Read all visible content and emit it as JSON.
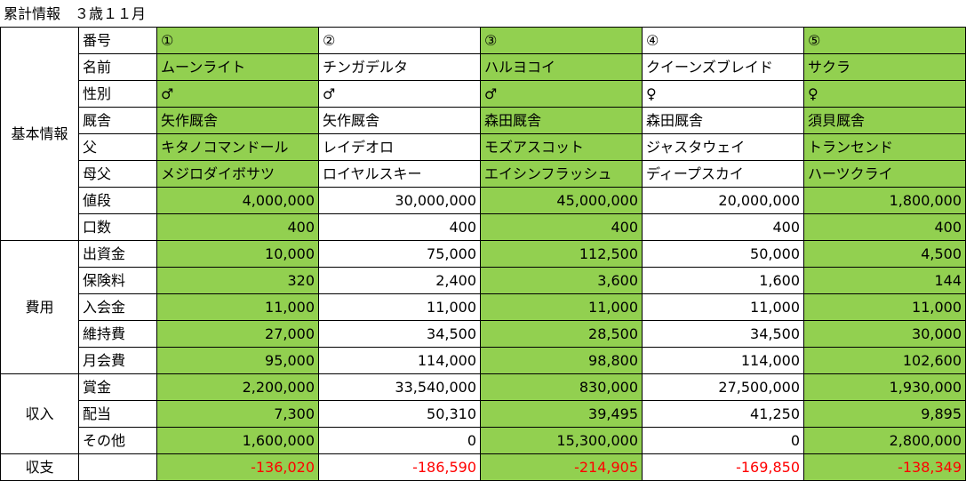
{
  "title": "累計情報　３歳１１月",
  "colors": {
    "highlight": "#92d050",
    "negative": "#ff0000"
  },
  "horses": [
    {
      "number": "①",
      "name": "ムーンライト",
      "sex": "♂",
      "stable": "矢作厩舎",
      "sire": "キタノコマンドール",
      "dam_sire": "メジロダイボサツ",
      "price": "4,000,000",
      "shares": "400",
      "investment": "10,000",
      "insurance": "320",
      "entry_fee": "11,000",
      "maintenance": "27,000",
      "monthly_fee": "95,000",
      "prize": "2,200,000",
      "dividend": "7,300",
      "other": "1,600,000",
      "balance": "-136,020"
    },
    {
      "number": "②",
      "name": "チンガデルタ",
      "sex": "♂",
      "stable": "矢作厩舎",
      "sire": "レイデオロ",
      "dam_sire": "ロイヤルスキー",
      "price": "30,000,000",
      "shares": "400",
      "investment": "75,000",
      "insurance": "2,400",
      "entry_fee": "11,000",
      "maintenance": "34,500",
      "monthly_fee": "114,000",
      "prize": "33,540,000",
      "dividend": "50,310",
      "other": "0",
      "balance": "-186,590"
    },
    {
      "number": "③",
      "name": "ハルヨコイ",
      "sex": "♂",
      "stable": "森田厩舎",
      "sire": "モズアスコット",
      "dam_sire": "エイシンフラッシュ",
      "price": "45,000,000",
      "shares": "400",
      "investment": "112,500",
      "insurance": "3,600",
      "entry_fee": "11,000",
      "maintenance": "28,500",
      "monthly_fee": "98,800",
      "prize": "830,000",
      "dividend": "39,495",
      "other": "15,300,000",
      "balance": "-214,905"
    },
    {
      "number": "④",
      "name": "クイーンズブレイド",
      "sex": "♀",
      "stable": "森田厩舎",
      "sire": "ジャスタウェイ",
      "dam_sire": "ディープスカイ",
      "price": "20,000,000",
      "shares": "400",
      "investment": "50,000",
      "insurance": "1,600",
      "entry_fee": "11,000",
      "maintenance": "34,500",
      "monthly_fee": "114,000",
      "prize": "27,500,000",
      "dividend": "41,250",
      "other": "0",
      "balance": "-169,850"
    },
    {
      "number": "⑤",
      "name": "サクラ",
      "sex": "♀",
      "stable": "須貝厩舎",
      "sire": "トランセンド",
      "dam_sire": "ハーツクライ",
      "price": "1,800,000",
      "shares": "400",
      "investment": "4,500",
      "insurance": "144",
      "entry_fee": "11,000",
      "maintenance": "30,000",
      "monthly_fee": "102,600",
      "prize": "1,930,000",
      "dividend": "9,895",
      "other": "2,800,000",
      "balance": "-138,349"
    }
  ],
  "sections": [
    {
      "label": "基本情報",
      "rows": [
        {
          "key": "number",
          "label": "番号",
          "align": "left"
        },
        {
          "key": "name",
          "label": "名前",
          "align": "left"
        },
        {
          "key": "sex",
          "label": "性別",
          "align": "left"
        },
        {
          "key": "stable",
          "label": "厩舎",
          "align": "left"
        },
        {
          "key": "sire",
          "label": "父",
          "align": "left"
        },
        {
          "key": "dam_sire",
          "label": "母父",
          "align": "left"
        },
        {
          "key": "price",
          "label": "値段",
          "align": "right"
        },
        {
          "key": "shares",
          "label": "口数",
          "align": "right"
        }
      ]
    },
    {
      "label": "費用",
      "rows": [
        {
          "key": "investment",
          "label": "出資金",
          "align": "right"
        },
        {
          "key": "insurance",
          "label": "保険料",
          "align": "right"
        },
        {
          "key": "entry_fee",
          "label": "入会金",
          "align": "right"
        },
        {
          "key": "maintenance",
          "label": "維持費",
          "align": "right"
        },
        {
          "key": "monthly_fee",
          "label": "月会費",
          "align": "right"
        }
      ]
    },
    {
      "label": "収入",
      "rows": [
        {
          "key": "prize",
          "label": "賞金",
          "align": "right"
        },
        {
          "key": "dividend",
          "label": "配当",
          "align": "right"
        },
        {
          "key": "other",
          "label": "その他",
          "align": "right"
        }
      ]
    },
    {
      "label": "収支",
      "rows": [
        {
          "key": "balance",
          "label": "",
          "align": "right",
          "negative": true
        }
      ]
    }
  ]
}
